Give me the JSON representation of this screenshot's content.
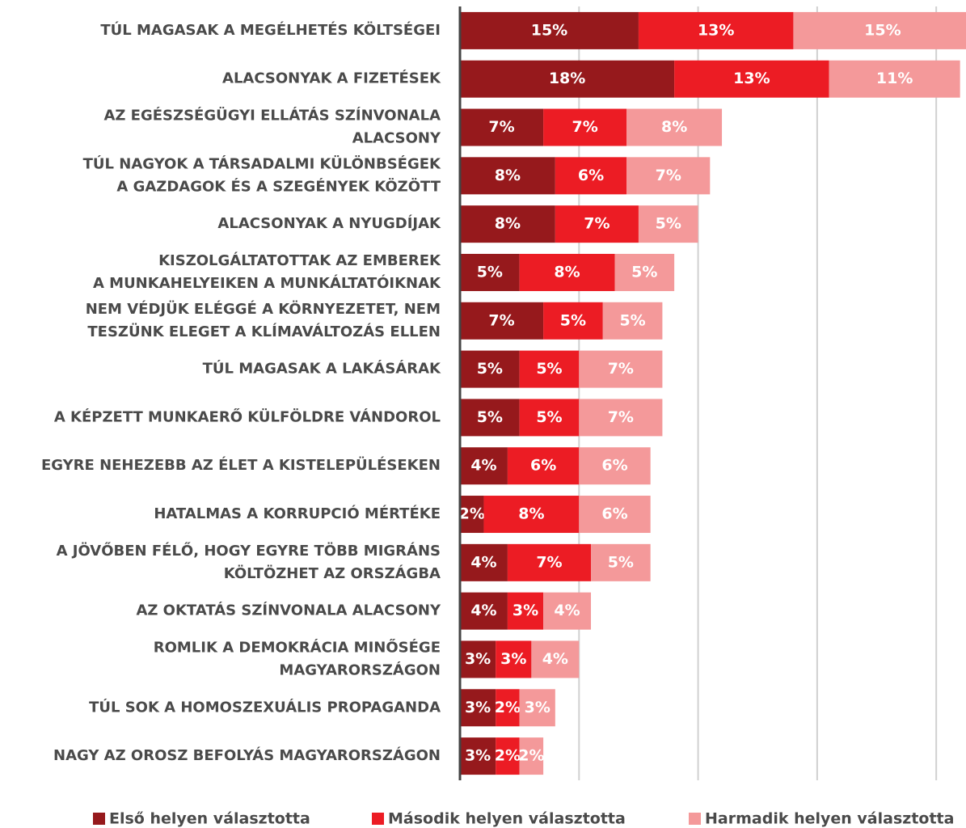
{
  "chart_data": {
    "type": "bar",
    "orientation": "horizontal",
    "stacked": true,
    "categories": [
      [
        "TÚL MAGASAK A MEGÉLHETÉS KÖLTSÉGEI"
      ],
      [
        "ALACSONYAK A FIZETÉSEK"
      ],
      [
        "AZ EGÉSZSÉGÜGYI ELLÁTÁS SZÍNVONALA",
        "ALACSONY"
      ],
      [
        "TÚL NAGYOK A TÁRSADALMI KÜLÖNBSÉGEK",
        "A GAZDAGOK ÉS A SZEGÉNYEK KÖZÖTT"
      ],
      [
        "ALACSONYAK A NYUGDÍJAK"
      ],
      [
        "KISZOLGÁLTATOTTAK AZ EMBEREK",
        "A MUNKAHELYEIKEN A MUNKÁLTATÓIKNAK"
      ],
      [
        "NEM VÉDJÜK ELÉGGÉ A KÖRNYEZETET, NEM",
        "TESZÜNK ELEGET A KLÍMAVÁLTOZÁS ELLEN"
      ],
      [
        "TÚL MAGASAK A LAKÁSÁRAK"
      ],
      [
        "A KÉPZETT MUNKAERŐ KÜLFÖLDRE VÁNDOROL"
      ],
      [
        "EGYRE NEHEZEBB AZ ÉLET A KISTELEPÜLÉSEKEN"
      ],
      [
        "HATALMAS A KORRUPCIÓ MÉRTÉKE"
      ],
      [
        "A JÖVŐBEN FÉLŐ, HOGY EGYRE TÖBB MIGRÁNS",
        "KÖLTÖZHET AZ ORSZÁGBA"
      ],
      [
        "AZ OKTATÁS SZÍNVONALA ALACSONY"
      ],
      [
        "ROMLIK A DEMOKRÁCIA MINŐSÉGE",
        "MAGYARORSZÁGON"
      ],
      [
        "TÚL SOK A HOMOSZEXUÁLIS PROPAGANDA"
      ],
      [
        "NAGY AZ OROSZ BEFOLYÁS MAGYARORSZÁGON"
      ]
    ],
    "series": [
      {
        "name": "Első helyen választotta",
        "color": "#96191c",
        "values": [
          15,
          18,
          7,
          8,
          8,
          5,
          7,
          5,
          5,
          4,
          2,
          4,
          4,
          3,
          3,
          3
        ],
        "value_labels": [
          "15%",
          "18%",
          "7%",
          "8%",
          "8%",
          "5%",
          "7%",
          "5%",
          "5%",
          "4%",
          "2%",
          "4%",
          "4%",
          "3%",
          "3%",
          "3%"
        ]
      },
      {
        "name": "Második helyen választotta",
        "color": "#ec1c24",
        "values": [
          13,
          13,
          7,
          6,
          7,
          8,
          5,
          5,
          5,
          6,
          8,
          7,
          3,
          3,
          2,
          2
        ],
        "value_labels": [
          "13%",
          "13%",
          "7%",
          "6%",
          "7%",
          "8%",
          "5%",
          "5%",
          "5%",
          "6%",
          "8%",
          "7%",
          "3%",
          "3%",
          "2%",
          "2%"
        ]
      },
      {
        "name": "Harmadik helyen választotta",
        "color": "#f4999a",
        "values": [
          15,
          11,
          8,
          7,
          5,
          5,
          5,
          7,
          7,
          6,
          6,
          5,
          4,
          4,
          3,
          2
        ],
        "value_labels": [
          "15%",
          "11%",
          "8%",
          "7%",
          "5%",
          "5%",
          "5%",
          "7%",
          "7%",
          "6%",
          "6%",
          "5%",
          "4%",
          "4%",
          "3%",
          "2%"
        ]
      }
    ],
    "xlim": [
      0,
      42.5
    ],
    "xticks": [
      0,
      10,
      20,
      30,
      40
    ],
    "grid": true
  }
}
